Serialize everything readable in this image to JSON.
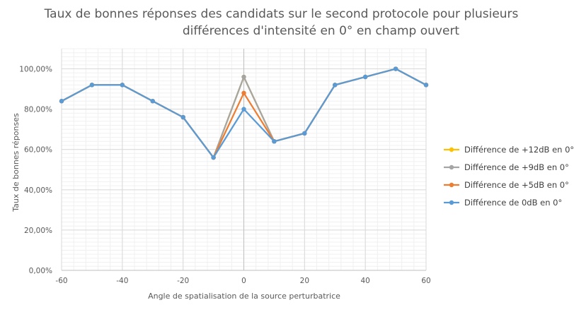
{
  "chart_data": {
    "type": "line",
    "title_lines": [
      "Taux de bonnes réponses des candidats sur le second protocole pour plusieurs",
      "différences d'intensité en 0° en champ ouvert"
    ],
    "xlabel": "Angle de spatialisation de la source perturbatrice",
    "ylabel": "Taux de bonnes réponses",
    "xlim": [
      -60,
      60
    ],
    "ylim": [
      0,
      1.1
    ],
    "x_ticks": [
      -60,
      -40,
      -20,
      0,
      20,
      40,
      60
    ],
    "x_tick_labels": [
      "-60",
      "-40",
      "-20",
      "0",
      "20",
      "40",
      "60"
    ],
    "y_ticks": [
      0,
      0.2,
      0.4,
      0.6,
      0.8,
      1.0
    ],
    "y_tick_labels": [
      "0,00%",
      "20,00%",
      "40,00%",
      "60,00%",
      "80,00%",
      "100,00%"
    ],
    "grid": true,
    "legend_position": "right",
    "x": [
      -60,
      -50,
      -40,
      -30,
      -20,
      -10,
      0,
      10,
      20,
      30,
      40,
      50,
      60
    ],
    "series": [
      {
        "name": "Différence de +12dB en 0°",
        "color": "#FFC000",
        "values": [
          0.84,
          0.92,
          0.92,
          0.84,
          0.76,
          0.56,
          0.96,
          0.64,
          0.68,
          0.92,
          0.96,
          1.0,
          0.92
        ]
      },
      {
        "name": "Différence de +9dB en 0°",
        "color": "#A5A5A5",
        "values": [
          0.84,
          0.92,
          0.92,
          0.84,
          0.76,
          0.56,
          0.96,
          0.64,
          0.68,
          0.92,
          0.96,
          1.0,
          0.92
        ]
      },
      {
        "name": "Différence de +5dB en 0°",
        "color": "#ED7D31",
        "values": [
          0.84,
          0.92,
          0.92,
          0.84,
          0.76,
          0.56,
          0.88,
          0.64,
          0.68,
          0.92,
          0.96,
          1.0,
          0.92
        ]
      },
      {
        "name": "Différence de 0dB en 0°",
        "color": "#5B9BD5",
        "values": [
          0.84,
          0.92,
          0.92,
          0.84,
          0.76,
          0.56,
          0.8,
          0.64,
          0.68,
          0.92,
          0.96,
          1.0,
          0.92
        ]
      }
    ]
  }
}
